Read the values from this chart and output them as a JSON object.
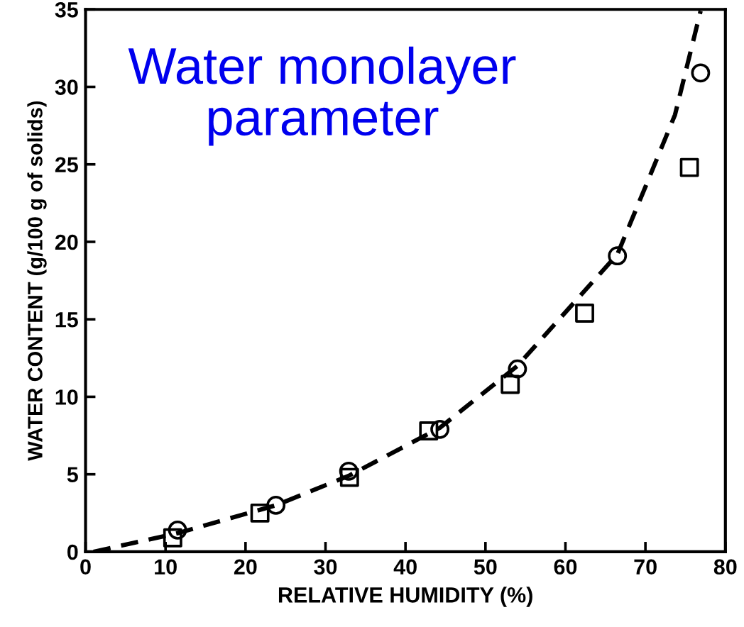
{
  "chart_data": {
    "type": "scatter",
    "xlabel": "RELATIVE HUMIDITY (%)",
    "ylabel": "WATER CONTENT (g/100 g of solids)",
    "annotations": [
      "Water monolayer\nparameter"
    ],
    "series": [
      {
        "marker": "circle",
        "color": "#000000",
        "x": [
          11.5,
          23.8,
          32.9,
          44.3,
          54.0,
          66.5,
          76.9
        ],
        "values": [
          1.4,
          3.0,
          5.2,
          7.9,
          11.8,
          19.1,
          30.9
        ]
      },
      {
        "marker": "square",
        "color": "#000000",
        "x": [
          10.9,
          21.8,
          33.0,
          42.9,
          53.1,
          62.4,
          75.5
        ],
        "values": [
          0.9,
          2.5,
          4.8,
          7.8,
          10.8,
          15.4,
          24.8
        ]
      },
      {
        "type": "line",
        "line_style": "dashed",
        "marker": "none",
        "color": "#000000",
        "x": [
          1,
          11.5,
          23.8,
          32.9,
          44.3,
          54.0,
          66.5,
          70.2,
          73.7,
          76.9
        ],
        "values": [
          0,
          1.2,
          3.0,
          4.9,
          8.0,
          12.0,
          19.2,
          23.8,
          28.2,
          34.9
        ]
      }
    ],
    "xlim": [
      0,
      80
    ],
    "xticks": [
      0,
      10,
      20,
      30,
      40,
      50,
      60,
      70,
      80
    ],
    "ylim": [
      0,
      35
    ],
    "yticks": [
      0,
      5,
      10,
      15,
      20,
      25,
      30,
      35
    ],
    "grid": false,
    "legend": false
  }
}
